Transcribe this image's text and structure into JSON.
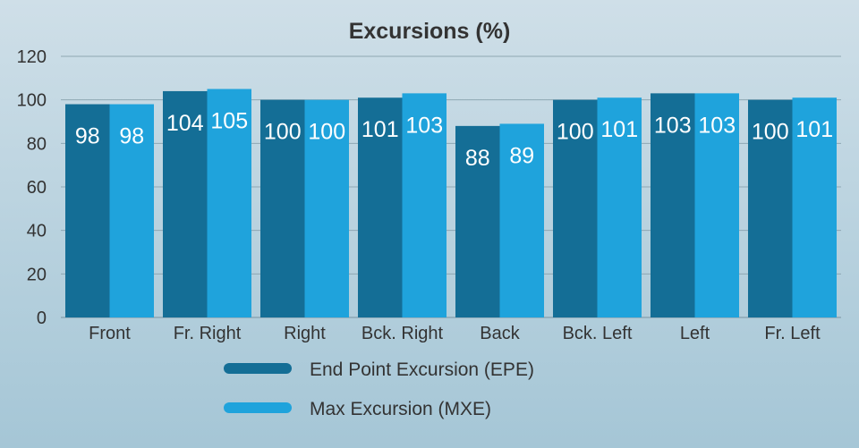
{
  "chart_data": {
    "type": "bar",
    "title": "Excursions (%)",
    "xlabel": "",
    "ylabel": "",
    "ylim": [
      0,
      120
    ],
    "yticks": [
      0,
      20,
      40,
      60,
      80,
      100,
      120
    ],
    "grid": true,
    "legend_position": "bottom",
    "categories": [
      "Front",
      "Fr. Right",
      "Right",
      "Bck. Right",
      "Back",
      "Bck. Left",
      "Left",
      "Fr. Left"
    ],
    "series": [
      {
        "name": "End Point Excursion (EPE)",
        "color": "#146e96",
        "values": [
          98,
          104,
          100,
          101,
          88,
          100,
          103,
          100
        ]
      },
      {
        "name": "Max Excursion (MXE)",
        "color": "#1fa3dc",
        "values": [
          98,
          105,
          100,
          103,
          89,
          101,
          103,
          101
        ]
      }
    ]
  }
}
